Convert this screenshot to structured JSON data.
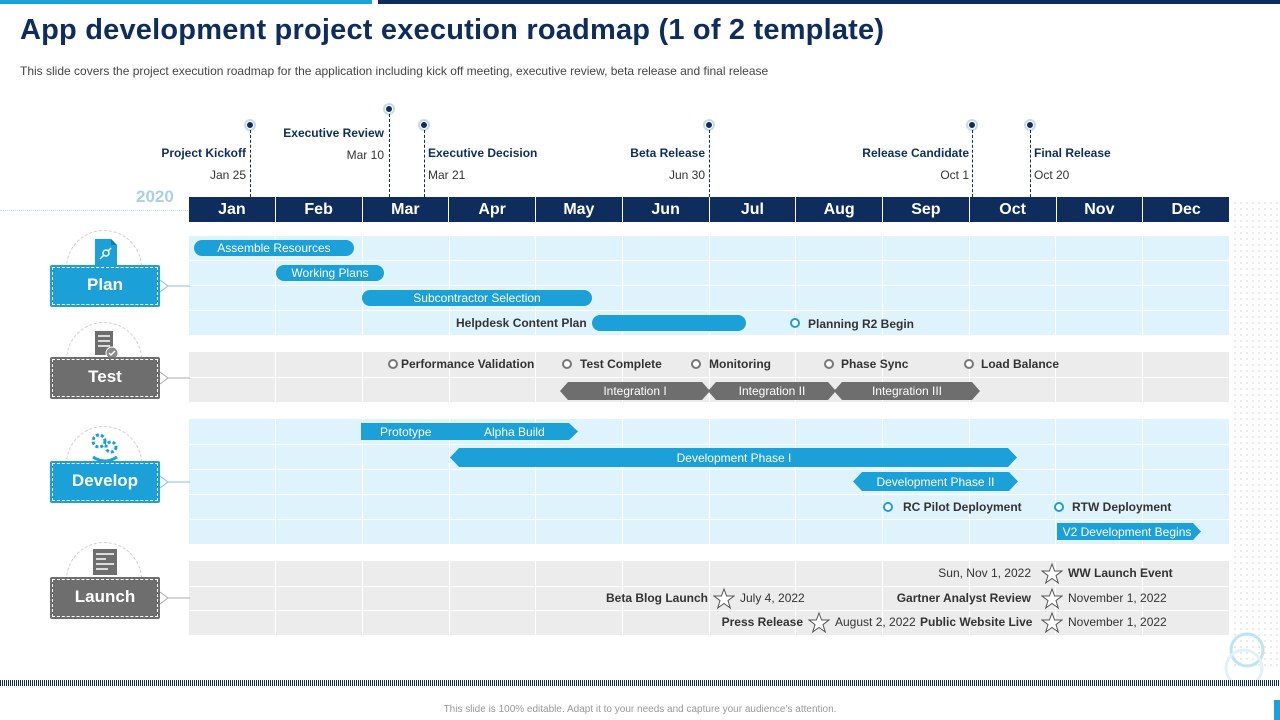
{
  "header": {
    "title": "App development project execution roadmap (1 of 2 template)",
    "subtitle": "This slide covers the project execution roadmap for the application including kick off meeting, executive review,  beta release and final release"
  },
  "year": "2020",
  "months": [
    "Jan",
    "Feb",
    "Mar",
    "Apr",
    "May",
    "Jun",
    "Jul",
    "Aug",
    "Sep",
    "Oct",
    "Nov",
    "Dec"
  ],
  "milestones": [
    {
      "label": "Project Kickoff",
      "date": "Jan 25"
    },
    {
      "label": "Executive Review",
      "date": "Mar 10"
    },
    {
      "label": "Executive Decision",
      "date": "Mar 21"
    },
    {
      "label": "Beta Release",
      "date": "Jun 30"
    },
    {
      "label": "Release Candidate",
      "date": "Oct 1"
    },
    {
      "label": "Final Release",
      "date": "Oct 20"
    }
  ],
  "categories": {
    "plan": "Plan",
    "test": "Test",
    "develop": "Develop",
    "launch": "Launch"
  },
  "plan": {
    "assemble": "Assemble Resources",
    "working": "Working Plans",
    "subcontractor": "Subcontractor Selection",
    "helpdesk": "Helpdesk Content Plan",
    "planning_r2": "Planning R2 Begin"
  },
  "test": {
    "performance": "Performance Validation",
    "test_complete": "Test Complete",
    "monitoring": "Monitoring",
    "phase_sync": "Phase Sync",
    "load_balance": "Load Balance",
    "integration1": "Integration I",
    "integration2": "Integration II",
    "integration3": "Integration III"
  },
  "develop": {
    "prototype": "Prototype",
    "alpha": "Alpha Build",
    "phase1": "Development Phase I",
    "phase2": "Development Phase II",
    "rc_pilot": "RC Pilot Deployment",
    "rtw": "RTW Deployment",
    "v2": "V2 Development Begins"
  },
  "launch": {
    "ww_date": "Sun, Nov 1, 2022",
    "ww_event": "WW Launch Event",
    "beta_blog": "Beta Blog Launch",
    "beta_blog_date": "July 4, 2022",
    "gartner": "Gartner Analyst Review",
    "gartner_date": "November 1, 2022",
    "press": "Press Release",
    "press_date": "August 2, 2022",
    "website": "Public Website Live",
    "website_date": "November 1, 2022"
  },
  "footer": {
    "note": "This slide is 100% editable. Adapt it to your needs and capture your audience’s attention."
  },
  "colors": {
    "navy": "#0e2d5c",
    "accent_blue": "#1ba0d8",
    "gray": "#6e6e6e"
  }
}
